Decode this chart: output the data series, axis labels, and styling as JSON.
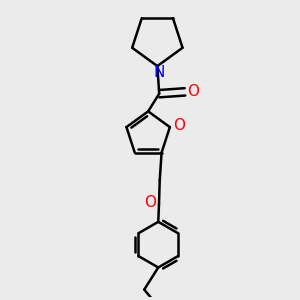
{
  "bg_color": "#ebebeb",
  "bond_color": "#000000",
  "N_color": "#0000ff",
  "O_color": "#ff0000",
  "line_width": 1.8,
  "figsize": [
    3.0,
    3.0
  ],
  "dpi": 100,
  "xlim": [
    -1.5,
    1.5
  ],
  "ylim": [
    -4.5,
    3.5
  ]
}
